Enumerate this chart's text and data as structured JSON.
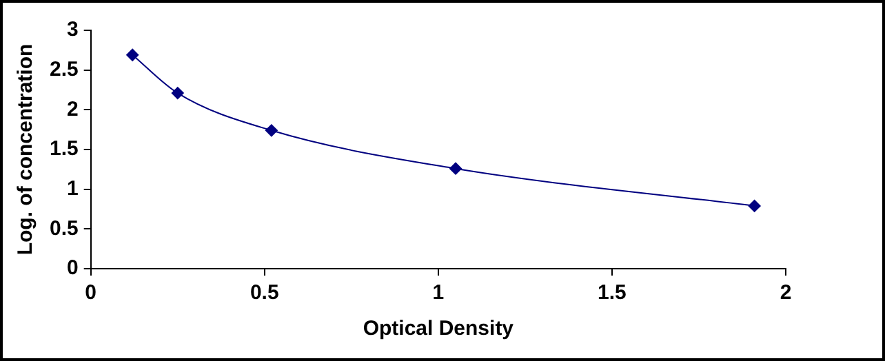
{
  "chart_data": {
    "type": "line",
    "xlabel": "Optical Density",
    "ylabel": "Log. of concentration",
    "x": [
      0.12,
      0.25,
      0.52,
      1.05,
      1.91
    ],
    "series": [
      {
        "color": "#000080",
        "values": [
          2.69,
          2.21,
          1.74,
          1.26,
          0.79
        ]
      }
    ],
    "xlim": [
      0,
      2
    ],
    "xticks": [
      0,
      0.5,
      1,
      1.5,
      2
    ],
    "ylim": [
      0,
      3
    ],
    "yticks": [
      0,
      0.5,
      1,
      1.5,
      2,
      2.5,
      3
    ],
    "grid": false,
    "legend": false,
    "marker": "diamond",
    "line_style": "solid"
  }
}
